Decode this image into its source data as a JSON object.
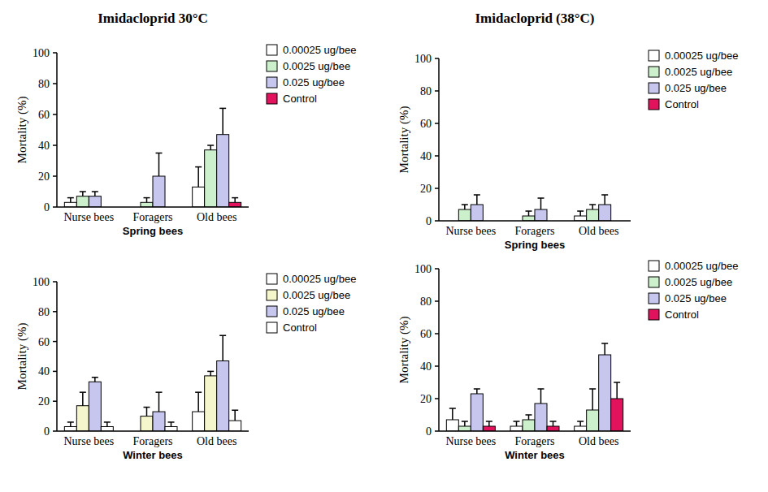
{
  "chart_data": [
    {
      "type": "bar",
      "title": "Imidacloprid 30°C",
      "x_label": "Spring bees",
      "y_label": "Mortality (%)",
      "categories": [
        "Nurse bees",
        "Foragers",
        "Old bees"
      ],
      "series": [
        {
          "name": "0.00025 ug/bee",
          "color": "#ffffff",
          "values": [
            3,
            0,
            13
          ],
          "errors": [
            3,
            0,
            13
          ]
        },
        {
          "name": "0.0025 ug/bee",
          "color": "#ccefcc",
          "values": [
            7,
            3,
            37
          ],
          "errors": [
            3,
            3,
            3
          ]
        },
        {
          "name": "0.025 ug/bee",
          "color": "#c6c6ee",
          "values": [
            7,
            20,
            47
          ],
          "errors": [
            3,
            15,
            17
          ]
        },
        {
          "name": "Control",
          "color": "#e2125c",
          "values": [
            0,
            0,
            3
          ],
          "errors": [
            0,
            0,
            3
          ]
        }
      ],
      "ylim": [
        0,
        100
      ],
      "yticks": [
        0,
        20,
        40,
        60,
        80,
        100
      ],
      "legend": "right"
    },
    {
      "type": "bar",
      "title": "Imidacloprid (38°C)",
      "x_label": "Spring bees",
      "y_label": "Mortality (%)",
      "categories": [
        "Nurse bees",
        "Foragers",
        "Old bees"
      ],
      "series": [
        {
          "name": "0.00025 ug/bee",
          "color": "#ffffff",
          "values": [
            0,
            0,
            3
          ],
          "errors": [
            0,
            0,
            3
          ]
        },
        {
          "name": "0.0025 ug/bee",
          "color": "#ccefcc",
          "values": [
            7,
            3,
            7
          ],
          "errors": [
            3,
            3,
            3
          ]
        },
        {
          "name": "0.025 ug/bee",
          "color": "#c6c6ee",
          "values": [
            10,
            7,
            10
          ],
          "errors": [
            6,
            7,
            6
          ]
        },
        {
          "name": "Control",
          "color": "#e2125c",
          "values": [
            0,
            0,
            0
          ],
          "errors": [
            0,
            0,
            0
          ]
        }
      ],
      "ylim": [
        0,
        100
      ],
      "yticks": [
        0,
        20,
        40,
        60,
        80,
        100
      ],
      "legend": "right"
    },
    {
      "type": "bar",
      "x_label": "Winter bees",
      "y_label": "Mortality (%)",
      "categories": [
        "Nurse bees",
        "Foragers",
        "Old bees"
      ],
      "series": [
        {
          "name": "0.00025 ug/bee",
          "color": "#ffffff",
          "values": [
            3,
            0,
            13
          ],
          "errors": [
            3,
            0,
            13
          ]
        },
        {
          "name": "0.0025 ug/bee",
          "color": "#f6f6cc",
          "values": [
            17,
            10,
            37
          ],
          "errors": [
            9,
            6,
            3
          ]
        },
        {
          "name": "0.025 ug/bee",
          "color": "#c6c6ee",
          "values": [
            33,
            13,
            47
          ],
          "errors": [
            3,
            13,
            17
          ]
        },
        {
          "name": "Control",
          "color": "#ffffff",
          "values": [
            3,
            3,
            7
          ],
          "errors": [
            3,
            3,
            7
          ]
        }
      ],
      "ylim": [
        0,
        100
      ],
      "yticks": [
        0,
        20,
        40,
        60,
        80,
        100
      ],
      "legend": "right"
    },
    {
      "type": "bar",
      "x_label": "Winter bees",
      "y_label": "Mortality (%)",
      "categories": [
        "Nurse bees",
        "Foragers",
        "Old bees"
      ],
      "series": [
        {
          "name": "0.00025 ug/bee",
          "color": "#ffffff",
          "values": [
            7,
            3,
            3
          ],
          "errors": [
            7,
            3,
            3
          ]
        },
        {
          "name": "0.0025 ug/bee",
          "color": "#ccefcc",
          "values": [
            3,
            7,
            13
          ],
          "errors": [
            3,
            3,
            13
          ]
        },
        {
          "name": "0.025 ug/bee",
          "color": "#c6c6ee",
          "values": [
            23,
            17,
            47
          ],
          "errors": [
            3,
            9,
            7
          ]
        },
        {
          "name": "Control",
          "color": "#e2125c",
          "values": [
            3,
            3,
            20
          ],
          "errors": [
            3,
            3,
            10
          ]
        }
      ],
      "ylim": [
        0,
        100
      ],
      "yticks": [
        0,
        20,
        40,
        60,
        80,
        100
      ],
      "legend": "right"
    }
  ]
}
